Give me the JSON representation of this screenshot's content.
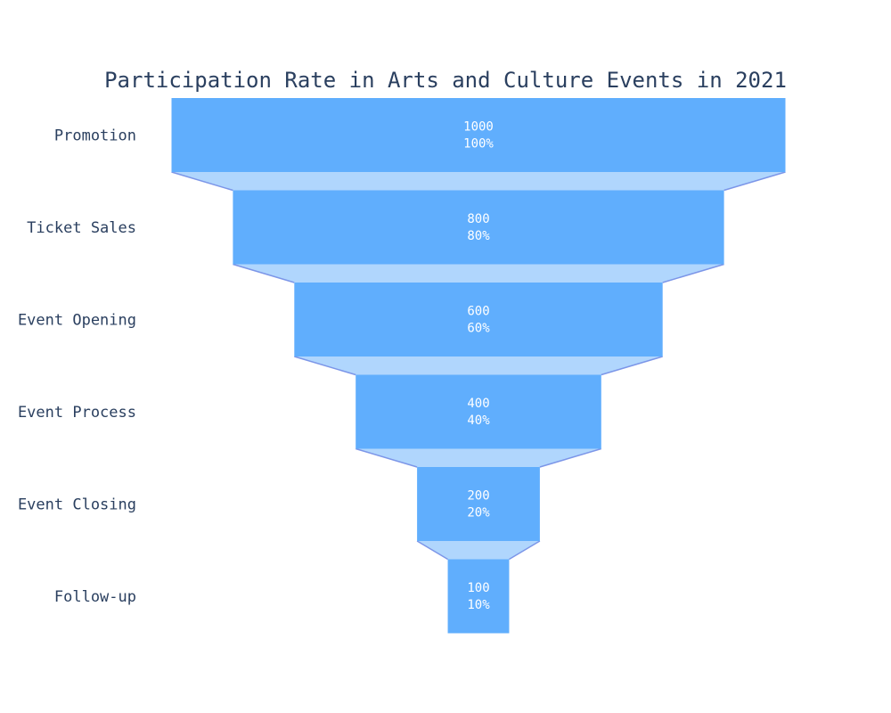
{
  "chart_data": {
    "type": "funnel",
    "title": "Participation Rate in Arts and Culture Events in 2021",
    "categories": [
      "Promotion",
      "Ticket Sales",
      "Event Opening",
      "Event Process",
      "Event Closing",
      "Follow-up"
    ],
    "values": [
      1000,
      800,
      600,
      400,
      200,
      100
    ],
    "percent_labels": [
      "100%",
      "80%",
      "60%",
      "40%",
      "20%",
      "10%"
    ],
    "value_labels": [
      "1000",
      "800",
      "600",
      "400",
      "200",
      "100"
    ],
    "colors": {
      "bar": "#60aefd",
      "connector_fill": "#b0d6fd",
      "connector_line": "#7c96e8",
      "text_inside": "#ffffff",
      "title": "#2a3f5f",
      "labels": "#2a3f5f"
    }
  }
}
